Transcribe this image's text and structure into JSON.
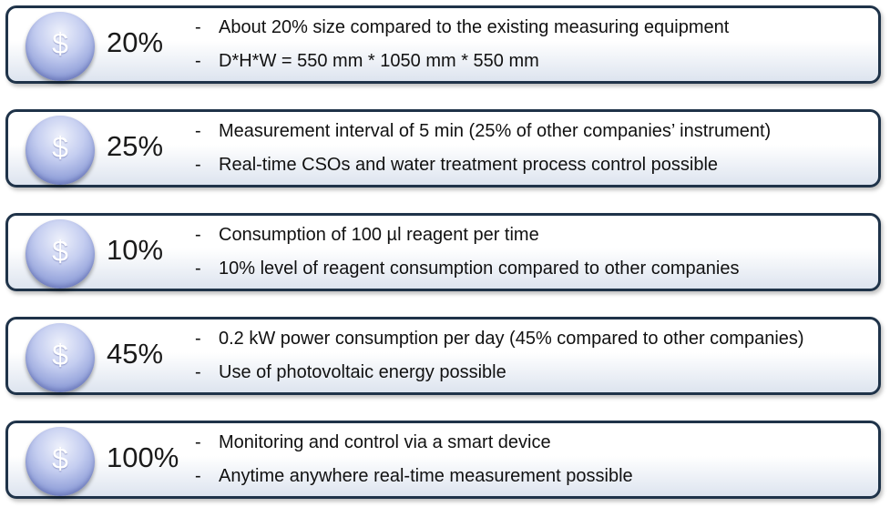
{
  "icon": "dollar-coin-icon",
  "icon_glyph": "$",
  "bullet_marker": "-",
  "colors": {
    "border": "#1f3349",
    "coin": "#8f9ed8"
  },
  "items": [
    {
      "percent": "20%",
      "lines": [
        "About 20% size compared to the existing measuring equipment",
        "D*H*W = 550 mm * 1050 mm * 550 mm"
      ]
    },
    {
      "percent": "25%",
      "lines": [
        "Measurement interval of 5 min (25% of other companies’ instrument)",
        "Real-time CSOs and water treatment process control possible"
      ]
    },
    {
      "percent": "10%",
      "lines": [
        "Consumption of 100 µl reagent per time",
        "10% level of reagent consumption compared to other companies"
      ]
    },
    {
      "percent": "45%",
      "lines": [
        "0.2 kW power consumption per day (45% compared to other companies)",
        "Use of photovoltaic energy possible"
      ]
    },
    {
      "percent": "100%",
      "lines": [
        "Monitoring and control via a smart device",
        "Anytime anywhere real-time measurement possible"
      ]
    }
  ]
}
